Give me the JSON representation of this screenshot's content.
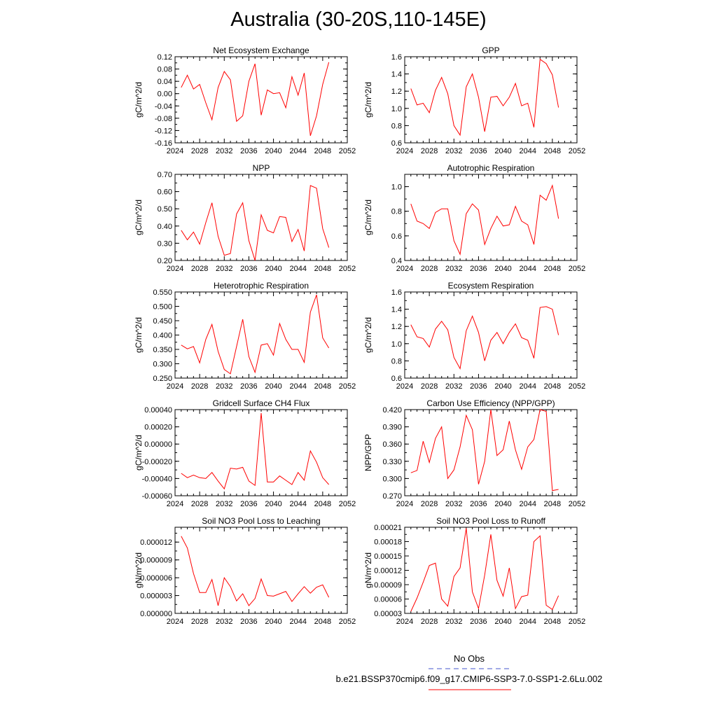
{
  "title": "Australia (30-20S,110-145E)",
  "colors": {
    "series": "#ff0000",
    "obs": "#4455cc",
    "axis": "#000000"
  },
  "legend": {
    "obs_label": "No Obs",
    "case_label": "b.e21.BSSP370cmip6.f09_g17.CMIP6-SSP3-7.0-SSP1-2.6Lu.002"
  },
  "chart_data": [
    {
      "type": "line",
      "title": "Net Ecosystem Exchange",
      "ylabel": "gC/m^2/d",
      "xlim": [
        2024,
        2052
      ],
      "ylim": [
        -0.16,
        0.12
      ],
      "xticks": [
        "2024",
        "2028",
        "2032",
        "2036",
        "2040",
        "2044",
        "2048",
        "2052"
      ],
      "yticks": [
        "-0.16",
        "-0.12",
        "-0.08",
        "-0.04",
        "0.00",
        "0.04",
        "0.08",
        "0.12"
      ],
      "x": [
        2025,
        2026,
        2027,
        2028,
        2029,
        2030,
        2031,
        2032,
        2033,
        2034,
        2035,
        2036,
        2037,
        2038,
        2039,
        2040,
        2041,
        2042,
        2043,
        2044,
        2045,
        2046,
        2047,
        2048,
        2049
      ],
      "values": [
        0.02,
        0.06,
        0.015,
        0.03,
        -0.03,
        -0.085,
        0.02,
        0.072,
        0.045,
        -0.09,
        -0.072,
        0.04,
        0.097,
        -0.07,
        0.012,
        0.0,
        0.003,
        -0.046,
        0.055,
        -0.005,
        0.067,
        -0.137,
        -0.072,
        0.03,
        0.102
      ]
    },
    {
      "type": "line",
      "title": "GPP",
      "ylabel": "gC/m^2/d",
      "xlim": [
        2024,
        2052
      ],
      "ylim": [
        0.6,
        1.6
      ],
      "xticks": [
        "2024",
        "2028",
        "2032",
        "2036",
        "2040",
        "2044",
        "2048",
        "2052"
      ],
      "yticks": [
        "0.6",
        "0.8",
        "1.0",
        "1.2",
        "1.4",
        "1.6"
      ],
      "x": [
        2025,
        2026,
        2027,
        2028,
        2029,
        2030,
        2031,
        2032,
        2033,
        2034,
        2035,
        2036,
        2037,
        2038,
        2039,
        2040,
        2041,
        2042,
        2043,
        2044,
        2045,
        2046,
        2047,
        2048,
        2049
      ],
      "values": [
        1.23,
        1.04,
        1.06,
        0.95,
        1.21,
        1.36,
        1.17,
        0.8,
        0.69,
        1.25,
        1.4,
        1.13,
        0.73,
        1.13,
        1.14,
        1.03,
        1.13,
        1.29,
        1.03,
        1.06,
        0.78,
        1.57,
        1.52,
        1.39,
        1.01
      ]
    },
    {
      "type": "line",
      "title": "NPP",
      "ylabel": "gC/m^2/d",
      "xlim": [
        2024,
        2052
      ],
      "ylim": [
        0.2,
        0.7
      ],
      "xticks": [
        "2024",
        "2028",
        "2032",
        "2036",
        "2040",
        "2044",
        "2048",
        "2052"
      ],
      "yticks": [
        "0.20",
        "0.30",
        "0.40",
        "0.50",
        "0.60",
        "0.70"
      ],
      "x": [
        2025,
        2026,
        2027,
        2028,
        2029,
        2030,
        2031,
        2032,
        2033,
        2034,
        2035,
        2036,
        2037,
        2038,
        2039,
        2040,
        2041,
        2042,
        2043,
        2044,
        2045,
        2046,
        2047,
        2048,
        2049
      ],
      "values": [
        0.375,
        0.32,
        0.365,
        0.295,
        0.42,
        0.535,
        0.34,
        0.23,
        0.24,
        0.47,
        0.535,
        0.315,
        0.2,
        0.465,
        0.375,
        0.36,
        0.455,
        0.45,
        0.31,
        0.38,
        0.255,
        0.635,
        0.62,
        0.385,
        0.275
      ]
    },
    {
      "type": "line",
      "title": "Autotrophic Respiration",
      "ylabel": "gC/m^2/d",
      "xlim": [
        2024,
        2052
      ],
      "ylim": [
        0.4,
        1.1
      ],
      "xticks": [
        "2024",
        "2028",
        "2032",
        "2036",
        "2040",
        "2044",
        "2048",
        "2052"
      ],
      "yticks": [
        "0.4",
        "0.6",
        "0.8",
        "1.0"
      ],
      "x": [
        2025,
        2026,
        2027,
        2028,
        2029,
        2030,
        2031,
        2032,
        2033,
        2034,
        2035,
        2036,
        2037,
        2038,
        2039,
        2040,
        2041,
        2042,
        2043,
        2044,
        2045,
        2046,
        2047,
        2048,
        2049
      ],
      "values": [
        0.86,
        0.72,
        0.7,
        0.66,
        0.79,
        0.82,
        0.82,
        0.56,
        0.45,
        0.78,
        0.86,
        0.81,
        0.53,
        0.66,
        0.76,
        0.68,
        0.69,
        0.84,
        0.72,
        0.69,
        0.53,
        0.93,
        0.89,
        1.01,
        0.74
      ]
    },
    {
      "type": "line",
      "title": "Heterotrophic Respiration",
      "ylabel": "gC/m^2/d",
      "xlim": [
        2024,
        2052
      ],
      "ylim": [
        0.25,
        0.55
      ],
      "xticks": [
        "2024",
        "2028",
        "2032",
        "2036",
        "2040",
        "2044",
        "2048",
        "2052"
      ],
      "yticks": [
        "0.250",
        "0.300",
        "0.350",
        "0.400",
        "0.450",
        "0.500",
        "0.550"
      ],
      "x": [
        2025,
        2026,
        2027,
        2028,
        2029,
        2030,
        2031,
        2032,
        2033,
        2034,
        2035,
        2036,
        2037,
        2038,
        2039,
        2040,
        2041,
        2042,
        2043,
        2044,
        2045,
        2046,
        2047,
        2048,
        2049
      ],
      "values": [
        0.365,
        0.352,
        0.36,
        0.303,
        0.385,
        0.437,
        0.343,
        0.28,
        0.265,
        0.36,
        0.455,
        0.325,
        0.27,
        0.365,
        0.37,
        0.33,
        0.44,
        0.385,
        0.35,
        0.35,
        0.305,
        0.48,
        0.54,
        0.39,
        0.355
      ]
    },
    {
      "type": "line",
      "title": "Ecosystem Respiration",
      "ylabel": "gC/m^2/d",
      "xlim": [
        2024,
        2052
      ],
      "ylim": [
        0.6,
        1.6
      ],
      "xticks": [
        "2024",
        "2028",
        "2032",
        "2036",
        "2040",
        "2044",
        "2048",
        "2052"
      ],
      "yticks": [
        "0.6",
        "0.8",
        "1.0",
        "1.2",
        "1.4",
        "1.6"
      ],
      "x": [
        2025,
        2026,
        2027,
        2028,
        2029,
        2030,
        2031,
        2032,
        2033,
        2034,
        2035,
        2036,
        2037,
        2038,
        2039,
        2040,
        2041,
        2042,
        2043,
        2044,
        2045,
        2046,
        2047,
        2048,
        2049
      ],
      "values": [
        1.22,
        1.08,
        1.06,
        0.96,
        1.17,
        1.26,
        1.16,
        0.84,
        0.71,
        1.15,
        1.32,
        1.13,
        0.8,
        1.04,
        1.13,
        1.0,
        1.13,
        1.23,
        1.07,
        1.04,
        0.83,
        1.42,
        1.43,
        1.4,
        1.1
      ]
    },
    {
      "type": "line",
      "title": "Gridcell Surface CH4 Flux",
      "ylabel": "gC/m^2/d",
      "xlim": [
        2024,
        2052
      ],
      "ylim": [
        -0.0006,
        0.0004
      ],
      "xticks": [
        "2024",
        "2028",
        "2032",
        "2036",
        "2040",
        "2044",
        "2048",
        "2052"
      ],
      "yticks": [
        "-0.00060",
        "-0.00040",
        "-0.00020",
        "0.00000",
        "0.00020",
        "0.00040"
      ],
      "x": [
        2025,
        2026,
        2027,
        2028,
        2029,
        2030,
        2031,
        2032,
        2033,
        2034,
        2035,
        2036,
        2037,
        2038,
        2039,
        2040,
        2041,
        2042,
        2043,
        2044,
        2045,
        2046,
        2047,
        2048,
        2049
      ],
      "values": [
        -0.00034,
        -0.00039,
        -0.00036,
        -0.00039,
        -0.0004,
        -0.00033,
        -0.00043,
        -0.00052,
        -0.00028,
        -0.00029,
        -0.00027,
        -0.00043,
        -0.00048,
        0.00036,
        -0.00044,
        -0.00044,
        -0.00037,
        -0.00042,
        -0.00047,
        -0.00033,
        -0.00042,
        -8e-05,
        -0.00021,
        -0.00039,
        -0.00047
      ]
    },
    {
      "type": "line",
      "title": "Carbon Use Efficiency (NPP/GPP)",
      "ylabel": "NPP/GPP",
      "xlim": [
        2024,
        2052
      ],
      "ylim": [
        0.27,
        0.42
      ],
      "xticks": [
        "2024",
        "2028",
        "2032",
        "2036",
        "2040",
        "2044",
        "2048",
        "2052"
      ],
      "yticks": [
        "0.270",
        "0.300",
        "0.330",
        "0.360",
        "0.390",
        "0.420"
      ],
      "x": [
        2025,
        2026,
        2027,
        2028,
        2029,
        2030,
        2031,
        2032,
        2033,
        2034,
        2035,
        2036,
        2037,
        2038,
        2039,
        2040,
        2041,
        2042,
        2043,
        2044,
        2045,
        2046,
        2047,
        2048,
        2049
      ],
      "values": [
        0.31,
        0.314,
        0.365,
        0.328,
        0.37,
        0.39,
        0.3,
        0.315,
        0.355,
        0.41,
        0.385,
        0.29,
        0.33,
        0.42,
        0.34,
        0.35,
        0.4,
        0.35,
        0.316,
        0.355,
        0.368,
        0.42,
        0.417,
        0.279,
        0.281
      ]
    },
    {
      "type": "line",
      "title": "Soil NO3 Pool Loss to Leaching",
      "ylabel": "gN/m^2/d",
      "xlim": [
        2024,
        2052
      ],
      "ylim": [
        0.0,
        1.45e-05
      ],
      "xticks": [
        "2024",
        "2028",
        "2032",
        "2036",
        "2040",
        "2044",
        "2048",
        "2052"
      ],
      "yticks": [
        "0.000000",
        "0.000003",
        "0.000006",
        "0.000009",
        "0.000012"
      ],
      "x": [
        2025,
        2026,
        2027,
        2028,
        2029,
        2030,
        2031,
        2032,
        2033,
        2034,
        2035,
        2036,
        2037,
        2038,
        2039,
        2040,
        2041,
        2042,
        2043,
        2044,
        2045,
        2046,
        2047,
        2048,
        2049
      ],
      "values": [
        1.3e-05,
        1.1e-05,
        6.7e-06,
        3.5e-06,
        3.5e-06,
        5.7e-06,
        1.3e-06,
        6e-06,
        4.5e-06,
        2.1e-06,
        3.3e-06,
        1.3e-06,
        2.5e-06,
        5.8e-06,
        3e-06,
        2.9e-06,
        3.3e-06,
        3.7e-06,
        2e-06,
        3.3e-06,
        4.5e-06,
        3.4e-06,
        4.4e-06,
        4.8e-06,
        2.7e-06
      ]
    },
    {
      "type": "line",
      "title": "Soil NO3 Pool Loss to Runoff",
      "ylabel": "gN/m^2/d",
      "xlim": [
        2024,
        2052
      ],
      "ylim": [
        3e-05,
        0.00021
      ],
      "xticks": [
        "2024",
        "2028",
        "2032",
        "2036",
        "2040",
        "2044",
        "2048",
        "2052"
      ],
      "yticks": [
        "0.00003",
        "0.00006",
        "0.00009",
        "0.00012",
        "0.00015",
        "0.00018",
        "0.00021"
      ],
      "x": [
        2025,
        2026,
        2027,
        2028,
        2029,
        2030,
        2031,
        2032,
        2033,
        2034,
        2035,
        2036,
        2037,
        2038,
        2039,
        2040,
        2041,
        2042,
        2043,
        2044,
        2045,
        2046,
        2047,
        2048,
        2049
      ],
      "values": [
        3.4e-05,
        6.2e-05,
        9.5e-05,
        0.00013,
        0.000135,
        6e-05,
        4.5e-05,
        0.000107,
        0.000125,
        0.000208,
        7.5e-05,
        4e-05,
        0.00011,
        0.000195,
        9.9e-05,
        6.6e-05,
        0.000125,
        4e-05,
        6.5e-05,
        6.8e-05,
        0.00018,
        0.000192,
        4.7e-05,
        3.8e-05,
        6.7e-05
      ]
    }
  ]
}
